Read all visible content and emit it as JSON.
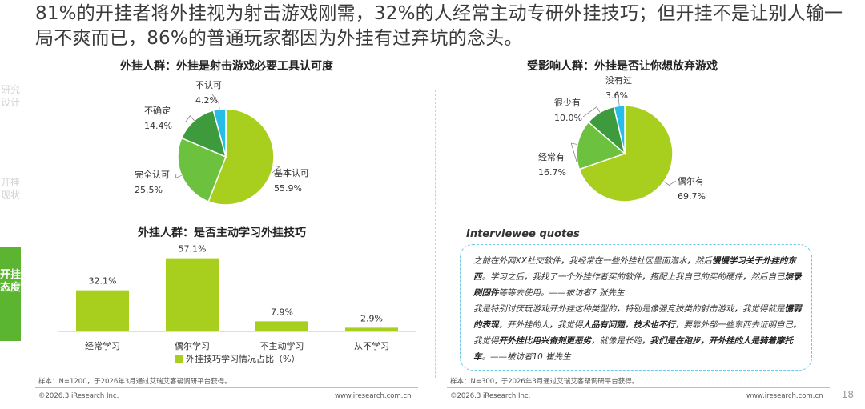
{
  "headline": "81%的开挂者将外挂视为射击游戏刚需，32%的人经常主动专研外挂技巧；但开挂不是让别人输一局不爽而已，86%的普通玩家都因为外挂有过弃坑的念头。",
  "sidebar": {
    "items": [
      {
        "label": "研究设计",
        "active": false
      },
      {
        "label": "开挂现状",
        "active": false
      },
      {
        "label": "开挂态度",
        "active": true
      }
    ]
  },
  "colors": {
    "light_green": "#a8cf1d",
    "mid_green": "#6cc23f",
    "dark_green": "#3d9a3d",
    "cyan": "#27bde8",
    "sidebar_active": "#5cb531"
  },
  "chart_data": [
    {
      "type": "pie",
      "title": "外挂人群：外挂是射击游戏必要工具认可度",
      "slices": [
        {
          "label": "基本认可",
          "value": 55.9,
          "display": "55.9%"
        },
        {
          "label": "完全认可",
          "value": 25.5,
          "display": "25.5%"
        },
        {
          "label": "不确定",
          "value": 14.4,
          "display": "14.4%"
        },
        {
          "label": "不认可",
          "value": 4.2,
          "display": "4.2%"
        }
      ]
    },
    {
      "type": "pie",
      "title": "受影响人群：外挂是否让你想放弃游戏",
      "slices": [
        {
          "label": "偶尔有",
          "value": 69.7,
          "display": "69.7%"
        },
        {
          "label": "经常有",
          "value": 16.7,
          "display": "16.7%"
        },
        {
          "label": "很少有",
          "value": 10.0,
          "display": "10.0%"
        },
        {
          "label": "没有过",
          "value": 3.6,
          "display": "3.6%"
        }
      ]
    },
    {
      "type": "bar",
      "title": "外挂人群：是否主动学习外挂技巧",
      "categories": [
        "经常学习",
        "偶尔学习",
        "不主动学习",
        "从不学习"
      ],
      "values": [
        32.1,
        57.1,
        7.9,
        2.9
      ],
      "value_labels": [
        "32.1%",
        "57.1%",
        "7.9%",
        "2.9%"
      ],
      "legend": "外挂技巧学习情况占比（%）",
      "ylim": [
        0,
        60
      ]
    }
  ],
  "quotes": {
    "title": "Interviewee quotes",
    "q1_a": "之前在外网XX社交软件，我经常在一些外挂社区里面潜水，然后",
    "q1_b": "慢慢学习关于外挂的东西",
    "q1_c": "。学习之后，我找了一个外挂作者买的软件，搭配上我自己的买的硬件，然后自己",
    "q1_d": "烧录刷固件",
    "q1_e": "等等去使用。——被访者7 张先生",
    "q2_a": "我是特别讨厌玩游戏开外挂这种类型的，特别是像强竞技类的射击游戏，我觉得就是",
    "q2_b": "懦弱的表现",
    "q2_c": "，开外挂的人，我觉得",
    "q2_d": "人品有问题",
    "q2_e": "，",
    "q2_f": "技术也不行",
    "q2_g": "，要靠外部一些东西去证明自己。我觉得",
    "q2_h": "开外挂比用兴奋剂更恶劣",
    "q2_i": "，就像是长跑，",
    "q2_j": "我们是在跑步，开外挂的人是骑着摩托车",
    "q2_k": "。——被访者10 崔先生"
  },
  "footnote_left": "样本：N=1200，于2026年3月通过艾瑞艾客帮调研平台获得。",
  "footnote_right": "样本：N=300，于2026年3月通过艾瑞艾客帮调研平台获得。",
  "footer_left_copy": "©2026.3 iResearch Inc.",
  "footer_left_url": "www.iresearch.com.cn",
  "footer_right_copy": "©2026.3 iResearch Inc.",
  "footer_right_url": "www.iresearch.com.cn",
  "page_number": "18"
}
